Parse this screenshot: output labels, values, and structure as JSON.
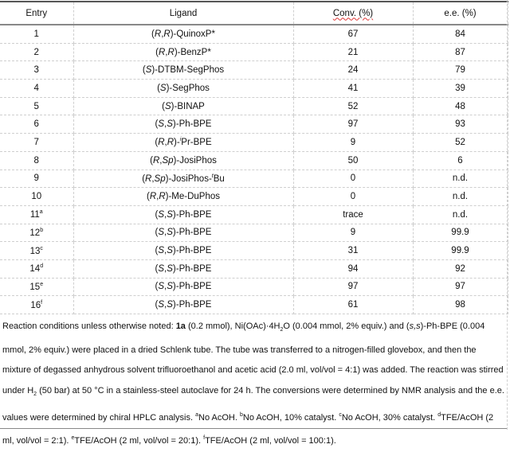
{
  "table": {
    "headers": [
      "Entry",
      "Ligand",
      "Conv. (%)",
      "e.e. (%)"
    ],
    "rows": [
      {
        "entry": "1",
        "sup": "",
        "ligand": [
          {
            "t": "("
          },
          {
            "t": "R",
            "i": true
          },
          {
            "t": ","
          },
          {
            "t": "R",
            "i": true
          },
          {
            "t": ")-QuinoxP*"
          }
        ],
        "conv": "67",
        "ee": "84"
      },
      {
        "entry": "2",
        "sup": "",
        "ligand": [
          {
            "t": "("
          },
          {
            "t": "R",
            "i": true
          },
          {
            "t": ","
          },
          {
            "t": "R",
            "i": true
          },
          {
            "t": ")-BenzP*"
          }
        ],
        "conv": "21",
        "ee": "87"
      },
      {
        "entry": "3",
        "sup": "",
        "ligand": [
          {
            "t": "("
          },
          {
            "t": "S",
            "i": true
          },
          {
            "t": ")-DTBM-SegPhos"
          }
        ],
        "conv": "24",
        "ee": "79"
      },
      {
        "entry": "4",
        "sup": "",
        "ligand": [
          {
            "t": "("
          },
          {
            "t": "S",
            "i": true
          },
          {
            "t": ")-SegPhos"
          }
        ],
        "conv": "41",
        "ee": "39"
      },
      {
        "entry": "5",
        "sup": "",
        "ligand": [
          {
            "t": "("
          },
          {
            "t": "S",
            "i": true
          },
          {
            "t": ")-BINAP"
          }
        ],
        "conv": "52",
        "ee": "48"
      },
      {
        "entry": "6",
        "sup": "",
        "ligand": [
          {
            "t": "("
          },
          {
            "t": "S",
            "i": true
          },
          {
            "t": ","
          },
          {
            "t": "S",
            "i": true
          },
          {
            "t": ")-Ph-BPE"
          }
        ],
        "conv": "97",
        "ee": "93"
      },
      {
        "entry": "7",
        "sup": "",
        "ligand": [
          {
            "t": "("
          },
          {
            "t": "R",
            "i": true
          },
          {
            "t": ","
          },
          {
            "t": "R",
            "i": true
          },
          {
            "t": ")-"
          },
          {
            "t": "i",
            "s": true
          },
          {
            "t": "Pr-BPE"
          }
        ],
        "conv": "9",
        "ee": "52"
      },
      {
        "entry": "8",
        "sup": "",
        "ligand": [
          {
            "t": "("
          },
          {
            "t": "R",
            "i": true
          },
          {
            "t": ","
          },
          {
            "t": "Sp",
            "i": true
          },
          {
            "t": ")-JosiPhos"
          }
        ],
        "conv": "50",
        "ee": "6"
      },
      {
        "entry": "9",
        "sup": "",
        "ligand": [
          {
            "t": "("
          },
          {
            "t": "R",
            "i": true
          },
          {
            "t": ","
          },
          {
            "t": "Sp",
            "i": true
          },
          {
            "t": ")-JosiPhos-"
          },
          {
            "t": "t",
            "s": true
          },
          {
            "t": "Bu"
          }
        ],
        "conv": "0",
        "ee": "n.d."
      },
      {
        "entry": "10",
        "sup": "",
        "ligand": [
          {
            "t": "("
          },
          {
            "t": "R",
            "i": true
          },
          {
            "t": ","
          },
          {
            "t": "R",
            "i": true
          },
          {
            "t": ")-Me-DuPhos"
          }
        ],
        "conv": "0",
        "ee": "n.d."
      },
      {
        "entry": "11",
        "sup": "a",
        "ligand": [
          {
            "t": "("
          },
          {
            "t": "S",
            "i": true
          },
          {
            "t": ","
          },
          {
            "t": "S",
            "i": true
          },
          {
            "t": ")-Ph-BPE"
          }
        ],
        "conv": "trace",
        "ee": "n.d."
      },
      {
        "entry": "12",
        "sup": "b",
        "ligand": [
          {
            "t": "("
          },
          {
            "t": "S",
            "i": true
          },
          {
            "t": ","
          },
          {
            "t": "S",
            "i": true
          },
          {
            "t": ")-Ph-BPE"
          }
        ],
        "conv": "9",
        "ee": "99.9"
      },
      {
        "entry": "13",
        "sup": "c",
        "ligand": [
          {
            "t": "("
          },
          {
            "t": "S",
            "i": true
          },
          {
            "t": ","
          },
          {
            "t": "S",
            "i": true
          },
          {
            "t": ")-Ph-BPE"
          }
        ],
        "conv": "31",
        "ee": "99.9"
      },
      {
        "entry": "14",
        "sup": "d",
        "ligand": [
          {
            "t": "("
          },
          {
            "t": "S",
            "i": true
          },
          {
            "t": ","
          },
          {
            "t": "S",
            "i": true
          },
          {
            "t": ")-Ph-BPE"
          }
        ],
        "conv": "94",
        "ee": "92"
      },
      {
        "entry": "15",
        "sup": "e",
        "ligand": [
          {
            "t": "("
          },
          {
            "t": "S",
            "i": true
          },
          {
            "t": ","
          },
          {
            "t": "S",
            "i": true
          },
          {
            "t": ")-Ph-BPE"
          }
        ],
        "conv": "97",
        "ee": "97"
      },
      {
        "entry": "16",
        "sup": "f",
        "ligand": [
          {
            "t": "("
          },
          {
            "t": "S",
            "i": true
          },
          {
            "t": ","
          },
          {
            "t": "S",
            "i": true
          },
          {
            "t": ")-Ph-BPE"
          }
        ],
        "conv": "61",
        "ee": "98"
      }
    ]
  },
  "footnote": [
    {
      "t": "Reaction conditions unless otherwise noted: "
    },
    {
      "t": "1a",
      "b": true
    },
    {
      "t": " (0.2 mmol), Ni(OAc)·4H"
    },
    {
      "t": "2",
      "sub": true
    },
    {
      "t": "O (0.004 mmol, 2% equiv.) and ("
    },
    {
      "t": "s,s",
      "i": true
    },
    {
      "t": ")-Ph-BPE (0.004 mmol, 2% equiv.) were placed in a dried Schlenk tube. The tube was transferred to a nitrogen-filled glovebox, and then the mixture of degassed anhydrous solvent trifluoroethanol and acetic acid (2.0 ml, vol/vol = 4:1) was added. The reaction was stirred under H"
    },
    {
      "t": "2",
      "sub": true
    },
    {
      "t": " (50 bar) at 50 °C in a stainless-steel autoclave for 24 h. The conversions were determined by NMR analysis and the e.e. values were determined by chiral HPLC analysis. "
    },
    {
      "t": "a",
      "sup": true
    },
    {
      "t": "No AcOH. "
    },
    {
      "t": "b",
      "sup": true
    },
    {
      "t": "No AcOH, 10% catalyst. "
    },
    {
      "t": "c",
      "sup": true
    },
    {
      "t": "No AcOH, 30% catalyst. "
    },
    {
      "t": "d",
      "sup": true
    },
    {
      "t": "TFE/AcOH (2 ml, vol/vol = 2:1). "
    },
    {
      "t": "e",
      "sup": true
    },
    {
      "t": "TFE/AcOH (2 ml, vol/vol = 20:1). "
    },
    {
      "t": "f",
      "sup": true
    },
    {
      "t": "TFE/AcOH (2 ml, vol/vol = 100:1)."
    }
  ]
}
